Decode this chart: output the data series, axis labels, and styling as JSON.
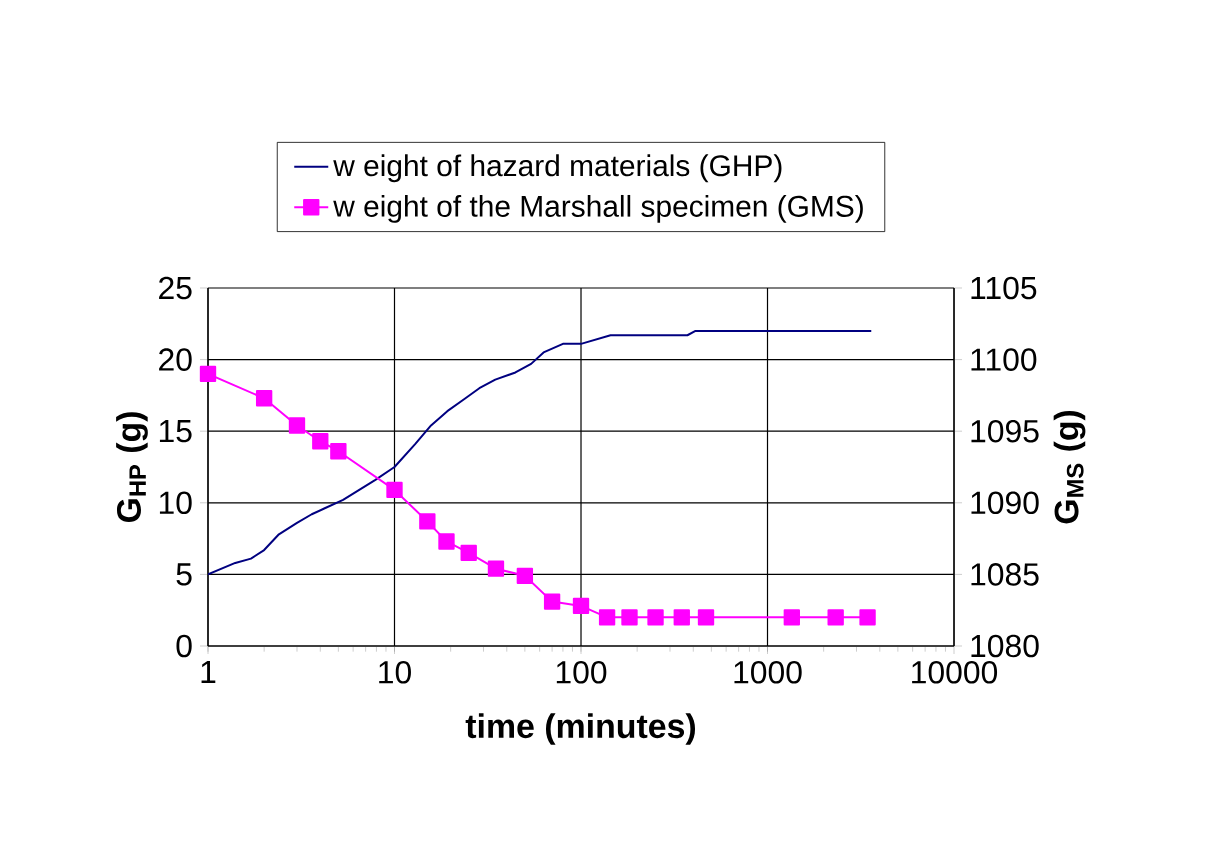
{
  "chart_data": {
    "type": "line",
    "xlabel": "time (minutes)",
    "ylabel": "G$_{HP}$ (g)",
    "y2label": "G$_{MS}$ (g)",
    "log": "x",
    "grid": true,
    "legend": "top",
    "xlim": [
      1,
      10000
    ],
    "xticks": [
      1,
      10,
      100,
      1000,
      10000
    ],
    "ylim": [
      0,
      25
    ],
    "yticks": [
      0,
      5,
      10,
      15,
      20,
      25
    ],
    "y2lim": [
      1080,
      1105
    ],
    "y2ticks": [
      1080,
      1085,
      1090,
      1095,
      1100,
      1105
    ],
    "series": [
      {
        "name": "w eight of hazard materials (GHP)",
        "color": "#000080",
        "marker": "none",
        "x": [
          1,
          1.4,
          1.7,
          2,
          2.4,
          3,
          3.6,
          4.2,
          5.3,
          7.9,
          10,
          12.9,
          15.7,
          19.2,
          23.4,
          28.5,
          34.7,
          44.5,
          54,
          63,
          80,
          100,
          144,
          372,
          411,
          3600
        ],
        "values": [
          5.0,
          5.8,
          6.1,
          6.7,
          7.8,
          8.6,
          9.2,
          9.6,
          10.2,
          11.6,
          12.5,
          14.1,
          15.4,
          16.4,
          17.2,
          18.0,
          18.6,
          19.1,
          19.7,
          20.5,
          21.1,
          21.1,
          21.7,
          21.7,
          22.0,
          22.0
        ]
      },
      {
        "name": "w eight of the Marshall specimen (GMS)",
        "color": "#ff00ff",
        "marker": "square",
        "axis": "y2",
        "x": [
          1,
          2,
          3,
          4,
          5,
          10,
          15,
          19,
          25,
          35,
          50,
          70,
          100,
          138,
          182,
          251,
          347,
          468,
          1350,
          2320,
          3440
        ],
        "values": [
          1099.0,
          1097.3,
          1095.4,
          1094.3,
          1093.6,
          1090.9,
          1088.7,
          1087.3,
          1086.5,
          1085.4,
          1084.9,
          1083.1,
          1082.8,
          1082.0,
          1082.0,
          1082.0,
          1082.0,
          1082.0,
          1082.0,
          1082.0,
          1082.0
        ]
      }
    ]
  }
}
